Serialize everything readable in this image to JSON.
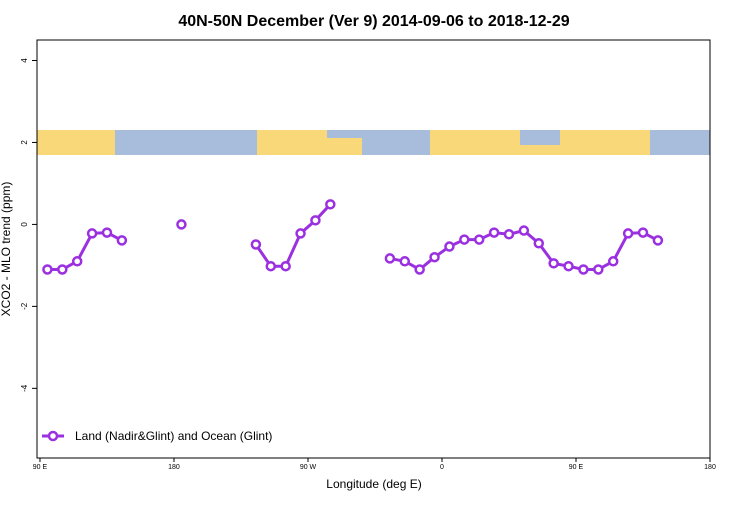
{
  "chart_data": {
    "type": "line",
    "title": "40N-50N December (Ver 9)   2014-09-06 to 2018-12-29",
    "x_label": "Longitude (deg E)",
    "y_label": "XCO2 - MLO trend (ppm)",
    "x": [
      95,
      105,
      115,
      125,
      135,
      145,
      155,
      165,
      175,
      185,
      195,
      205,
      215,
      225,
      235,
      245,
      255,
      265,
      275,
      285,
      295,
      305,
      315,
      325,
      335,
      345,
      355,
      365,
      375,
      385,
      395,
      405,
      415,
      425,
      435,
      445,
      455,
      465,
      475,
      485,
      495,
      505
    ],
    "series": [
      {
        "name": "Land (Nadir&Glint) and Ocean (Glint)",
        "color": "#9b30e0",
        "values": [
          -1.1,
          -1.1,
          -0.9,
          -0.22,
          -0.2,
          -0.39,
          null,
          null,
          null,
          0.0,
          null,
          null,
          null,
          null,
          -0.49,
          -1.02,
          -1.02,
          -0.22,
          0.1,
          0.49,
          null,
          null,
          null,
          -0.83,
          -0.9,
          -1.1,
          -0.8,
          -0.54,
          -0.37,
          -0.37,
          -0.2,
          -0.24,
          -0.15,
          -0.46,
          -0.95,
          -1.02,
          -1.1,
          -1.1,
          -0.9,
          -0.22,
          -0.2,
          -0.39
        ]
      }
    ],
    "xlim": [
      88,
      540
    ],
    "ylim": [
      -5.7,
      4.5
    ],
    "xticks": [
      {
        "value": 90,
        "label": "90 E"
      },
      {
        "value": 180,
        "label": "180"
      },
      {
        "value": 270,
        "label": "90 W"
      },
      {
        "value": 360,
        "label": "0"
      },
      {
        "value": 450,
        "label": "90 E"
      },
      {
        "value": 540,
        "label": "180"
      }
    ],
    "yticks": [
      -4,
      -2,
      0,
      2,
      4
    ],
    "legend": "bottom-left"
  }
}
